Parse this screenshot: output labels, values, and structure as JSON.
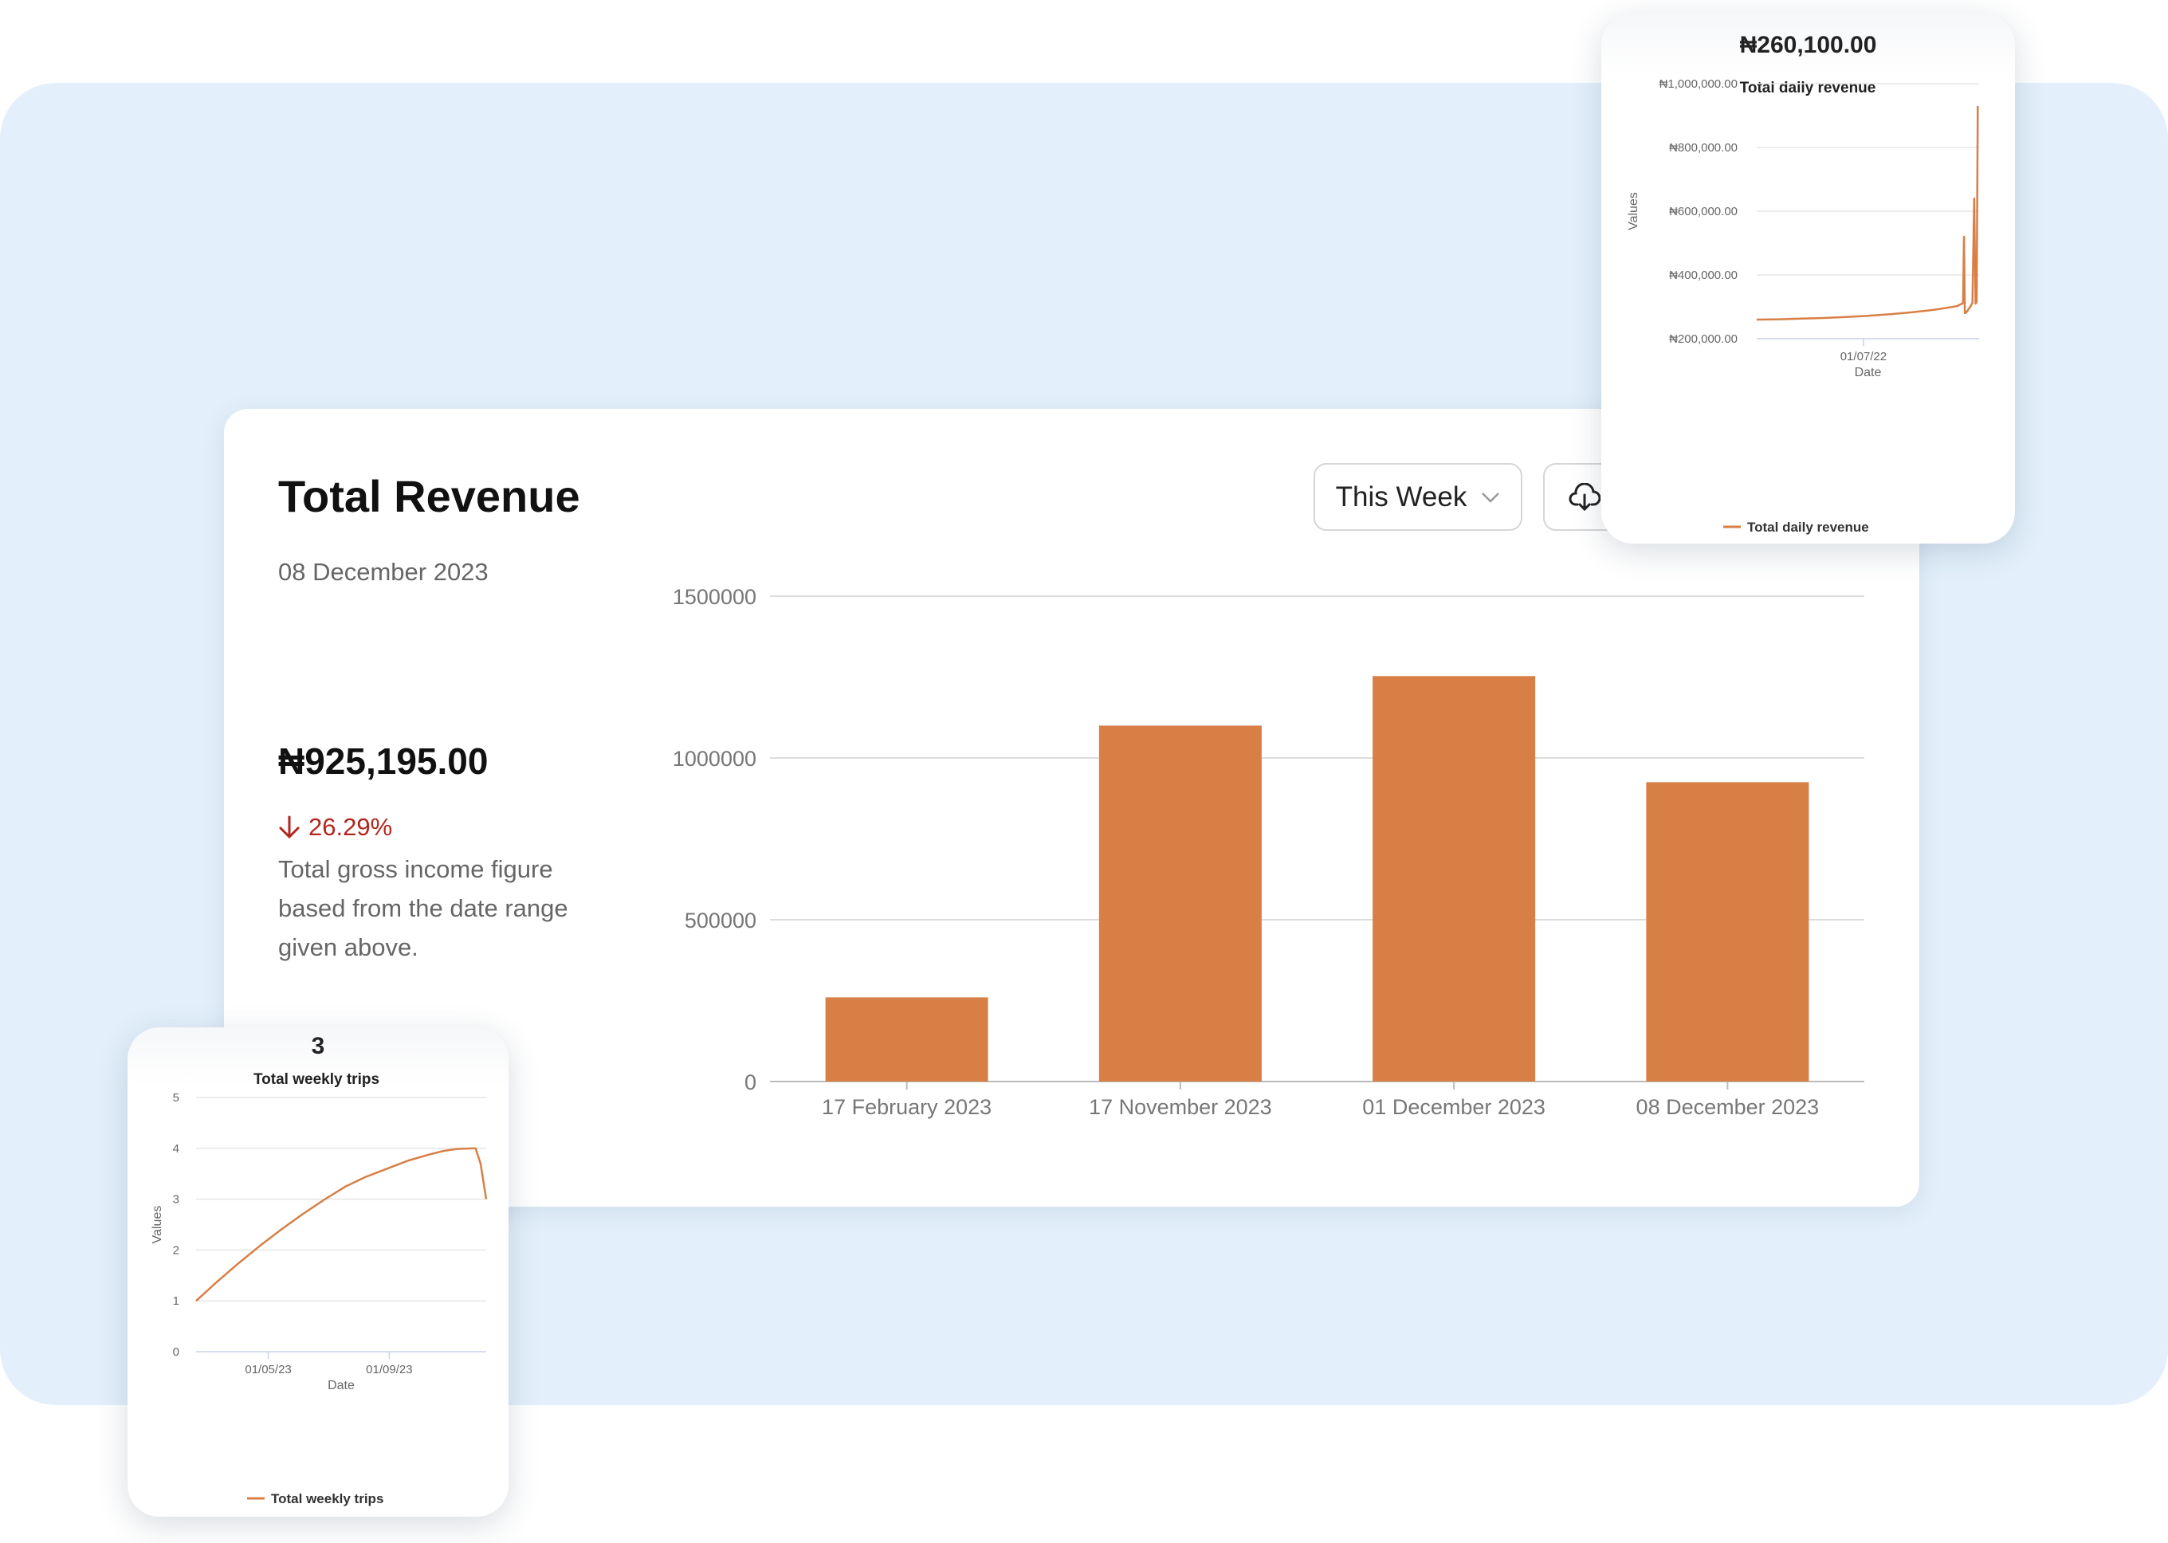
{
  "main": {
    "title": "Total Revenue",
    "date": "08 December 2023",
    "amount": "₦925,195.00",
    "change": "26.29%",
    "change_direction": "down",
    "description": "Total gross income figure based from the date range given above.",
    "range_select": "This Week",
    "icons": {
      "download": "cloud-download-icon",
      "chevron": "chevron-down-icon",
      "arrow": "arrow-down-icon"
    }
  },
  "daily_card": {
    "value": "₦260,100.00"
  },
  "weekly_card": {
    "value": "3"
  },
  "colors": {
    "accent": "#D77F45",
    "negative": "#B3261E",
    "background": "#E3F0FB"
  },
  "chart_data": [
    {
      "type": "bar",
      "title": "",
      "categories": [
        "17 February 2023",
        "17 November 2023",
        "01 December 2023",
        "08 December 2023"
      ],
      "values": [
        260100,
        1100000,
        1253000,
        925195
      ],
      "xlabel": "",
      "ylabel": "",
      "ylim": [
        0,
        1500000
      ],
      "y_ticks": [
        "0",
        "500000",
        "1000000",
        "1500000"
      ],
      "y_tick_values": [
        0,
        500000,
        1000000,
        1500000
      ],
      "grid": true
    },
    {
      "type": "line",
      "title": "Total daily revenue",
      "xlabel": "Date",
      "ylabel": "Values",
      "ylim": [
        200000,
        1000000
      ],
      "y_ticks": [
        "₦200,000.00",
        "₦400,000.00",
        "₦600,000.00",
        "₦800,000.00",
        "₦1,000,000.00"
      ],
      "y_tick_values": [
        200000,
        400000,
        600000,
        800000,
        1000000
      ],
      "xlim": [
        0,
        100
      ],
      "x_ticks": [
        "01/07/22"
      ],
      "x_tick_values": [
        48
      ],
      "legend": "bottom",
      "series": [
        {
          "name": "Total daily revenue",
          "x": [
            0,
            10,
            20,
            30,
            40,
            50,
            60,
            70,
            80,
            90,
            92.8,
            93.2,
            93.6,
            94.2,
            96,
            97,
            97.8,
            98.4,
            98.9,
            99.4
          ],
          "values": [
            260000,
            261000,
            263000,
            265000,
            268000,
            272000,
            277000,
            283000,
            291000,
            302000,
            312000,
            520000,
            280000,
            282000,
            300000,
            312000,
            640000,
            310000,
            315000,
            930000
          ]
        }
      ],
      "grid": true
    },
    {
      "type": "line",
      "title": "Total weekly trips",
      "xlabel": "Date",
      "ylabel": "Values",
      "ylim": [
        0,
        5
      ],
      "y_ticks": [
        "0",
        "1",
        "2",
        "3",
        "4",
        "5"
      ],
      "y_tick_values": [
        0,
        1,
        2,
        3,
        4,
        5
      ],
      "xlim": [
        0,
        41
      ],
      "x_ticks": [
        "01/05/23",
        "01/09/23"
      ],
      "x_tick_values": [
        10.2,
        27.3
      ],
      "legend": "bottom",
      "series": [
        {
          "name": "Total weekly trips",
          "x": [
            0,
            3,
            6,
            9,
            12,
            15,
            18,
            21,
            24,
            27,
            30,
            33,
            35,
            37,
            39.5,
            40.2,
            41
          ],
          "values": [
            1,
            1.38,
            1.74,
            2.08,
            2.4,
            2.7,
            2.98,
            3.24,
            3.44,
            3.6,
            3.76,
            3.88,
            3.95,
            3.99,
            4,
            3.7,
            3
          ]
        }
      ],
      "grid": true
    }
  ]
}
